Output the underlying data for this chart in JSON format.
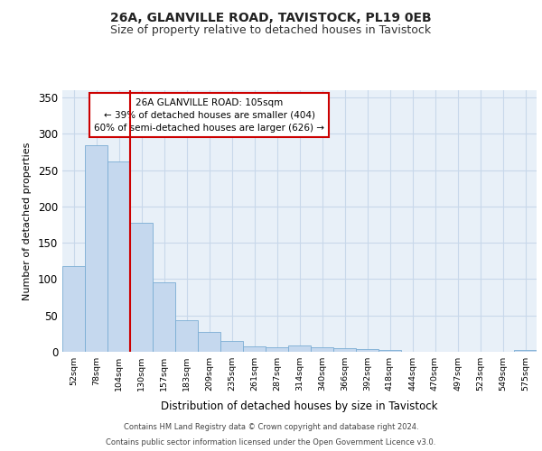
{
  "title1": "26A, GLANVILLE ROAD, TAVISTOCK, PL19 0EB",
  "title2": "Size of property relative to detached houses in Tavistock",
  "xlabel": "Distribution of detached houses by size in Tavistock",
  "ylabel": "Number of detached properties",
  "categories": [
    "52sqm",
    "78sqm",
    "104sqm",
    "130sqm",
    "157sqm",
    "183sqm",
    "209sqm",
    "235sqm",
    "261sqm",
    "287sqm",
    "314sqm",
    "340sqm",
    "366sqm",
    "392sqm",
    "418sqm",
    "444sqm",
    "470sqm",
    "497sqm",
    "523sqm",
    "549sqm",
    "575sqm"
  ],
  "values": [
    118,
    284,
    262,
    178,
    95,
    44,
    27,
    15,
    8,
    6,
    9,
    6,
    5,
    4,
    3,
    0,
    0,
    0,
    0,
    0,
    2
  ],
  "bar_color": "#c5d8ee",
  "bar_edge_color": "#7aadd4",
  "grid_color": "#c8d8ea",
  "background_color": "#e8f0f8",
  "vline_x_index": 2,
  "vline_color": "#cc0000",
  "annotation_text": "26A GLANVILLE ROAD: 105sqm\n← 39% of detached houses are smaller (404)\n60% of semi-detached houses are larger (626) →",
  "annotation_box_facecolor": "#ffffff",
  "annotation_box_edgecolor": "#cc0000",
  "footer1": "Contains HM Land Registry data © Crown copyright and database right 2024.",
  "footer2": "Contains public sector information licensed under the Open Government Licence v3.0.",
  "ylim": [
    0,
    360
  ],
  "yticks": [
    0,
    50,
    100,
    150,
    200,
    250,
    300,
    350
  ]
}
